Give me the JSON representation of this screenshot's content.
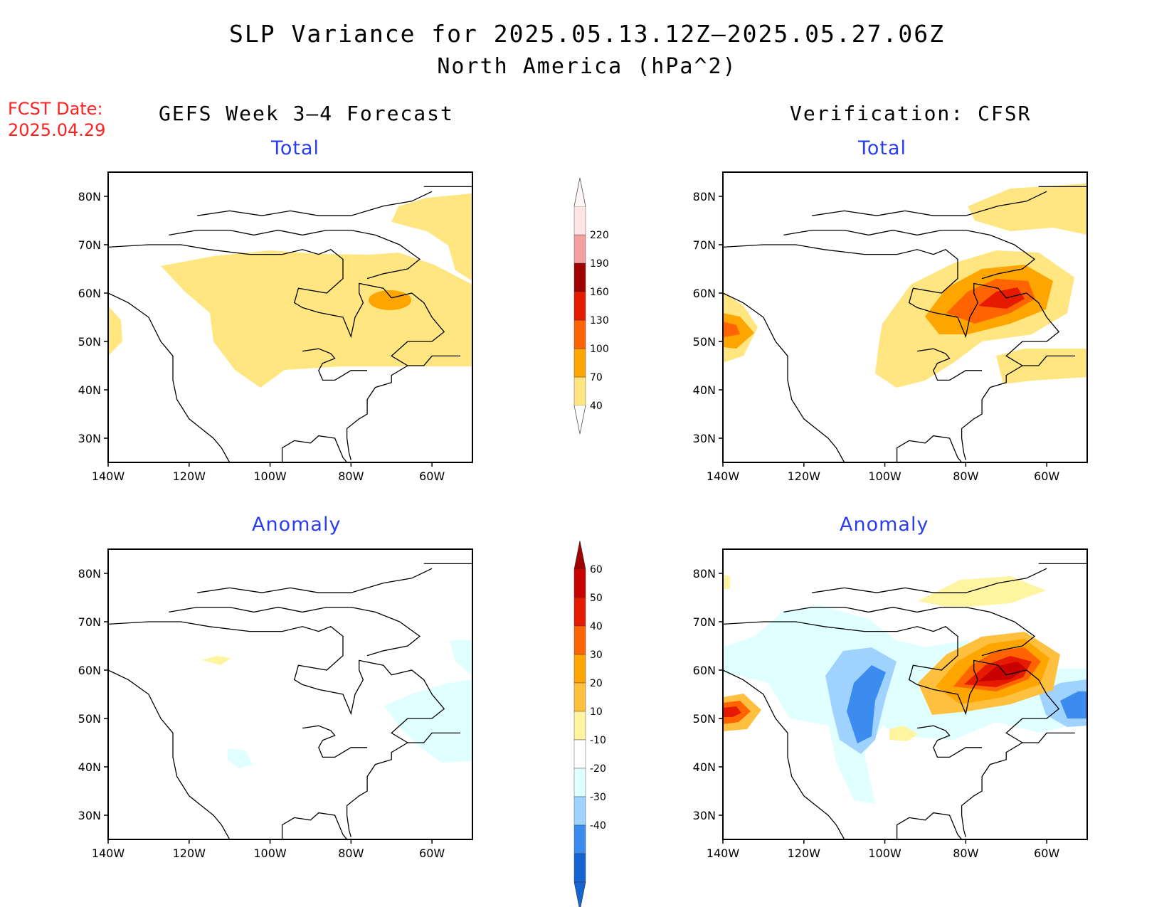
{
  "header": {
    "title": "SLP Variance for 2025.05.13.12Z—2025.05.27.06Z",
    "subtitle": "North America (hPa^2)",
    "fcst_label": "FCST Date:",
    "fcst_date": "2025.04.29"
  },
  "columns": {
    "left": "GEFS Week 3—4 Forecast",
    "right": "Verification: CFSR"
  },
  "panels": [
    {
      "id": "gefs-total",
      "title": "Total"
    },
    {
      "id": "cfsr-total",
      "title": "Total"
    },
    {
      "id": "gefs-anomaly",
      "title": "Anomaly"
    },
    {
      "id": "cfsr-anomaly",
      "title": "Anomaly"
    }
  ],
  "axes": {
    "lat_ticks": [
      "80N",
      "70N",
      "60N",
      "50N",
      "40N",
      "30N"
    ],
    "lat_values": [
      80,
      70,
      60,
      50,
      40,
      30
    ],
    "lon_ticks": [
      "140W",
      "120W",
      "100W",
      "80W",
      "60W"
    ],
    "lon_values": [
      -140,
      -120,
      -100,
      -80,
      -60
    ],
    "lon_range": [
      -140,
      -50
    ],
    "lat_range": [
      25,
      85
    ]
  },
  "colorbars": {
    "total": {
      "labels": [
        "40",
        "70",
        "100",
        "130",
        "160",
        "190",
        "220"
      ],
      "colors": [
        "#ffe680",
        "#ffa500",
        "#ff6400",
        "#e61a00",
        "#a00000",
        "#f4a0a0",
        "#ffe6e6"
      ]
    },
    "anomaly": {
      "labels": [
        "60",
        "50",
        "40",
        "30",
        "20",
        "10",
        "-10",
        "-20",
        "-30",
        "-40"
      ],
      "colors": [
        "#c80000",
        "#e61a00",
        "#ff6400",
        "#ffa500",
        "#ffc040",
        "#fff5a0",
        "#ffffff",
        "#e0ffff",
        "#a0d2ff",
        "#3c8cf0",
        "#1464d2"
      ]
    }
  },
  "chart_data": {
    "type": "heatmap",
    "variable": "SLP Variance",
    "units": "hPa^2",
    "panels": [
      {
        "panel": "gefs-total",
        "features": [
          {
            "lon": -95,
            "lat": 54,
            "value": 45,
            "label": "broad 40-70 band across Canada"
          },
          {
            "lon": -70,
            "lat": 58,
            "value": 80,
            "label": "70-100 max near Hudson Strait/Ungava"
          },
          {
            "lon": -58,
            "lat": 78,
            "value": 45,
            "label": "40-70 over Greenland"
          },
          {
            "lon": -140,
            "lat": 50,
            "value": 45,
            "label": "40-70 off Pacific coast"
          }
        ]
      },
      {
        "panel": "cfsr-total",
        "features": [
          {
            "lon": -72,
            "lat": 58,
            "value": 145,
            "label": "130-160 max over Quebec"
          },
          {
            "lon": -78,
            "lat": 54,
            "value": 105,
            "label": "100-130 ring"
          },
          {
            "lon": -85,
            "lat": 50,
            "value": 50,
            "label": "40-70 surrounding"
          },
          {
            "lon": -138,
            "lat": 52,
            "value": 110,
            "label": "100-130 off Pacific NW coast"
          },
          {
            "lon": -60,
            "lat": 80,
            "value": 50,
            "label": "40-70 over Greenland"
          },
          {
            "lon": -58,
            "lat": 47,
            "value": 50,
            "label": "40-70 Atlantic Canada"
          }
        ]
      },
      {
        "panel": "gefs-anomaly",
        "features": [
          {
            "lon": -60,
            "lat": 47,
            "value": -15,
            "label": "-10 to -20 east Canada"
          },
          {
            "lon": -110,
            "lat": 61,
            "value": 15,
            "label": "10-20 small patch"
          },
          {
            "lon": -108,
            "lat": 42,
            "value": -12,
            "label": "-10 to -20 small patch"
          }
        ]
      },
      {
        "panel": "cfsr-anomaly",
        "features": [
          {
            "lon": -70,
            "lat": 59,
            "value": 65,
            "label": ">60 max over Quebec"
          },
          {
            "lon": -105,
            "lat": 55,
            "value": -35,
            "label": "-30 to -40 central Canada"
          },
          {
            "lon": -52,
            "lat": 52,
            "value": -35,
            "label": "-30 to -40 Labrador Sea"
          },
          {
            "lon": -137,
            "lat": 52,
            "value": 45,
            "label": "40-50 off Pacific coast"
          },
          {
            "lon": -70,
            "lat": 80,
            "value": 15,
            "label": "10-20 near Greenland"
          }
        ]
      }
    ]
  }
}
